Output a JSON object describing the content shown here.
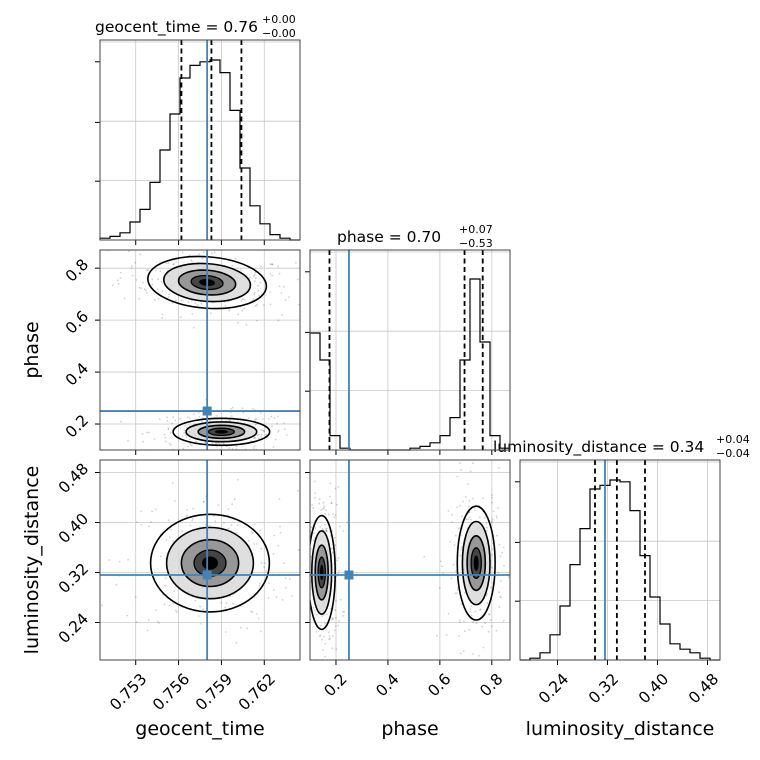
{
  "chart_data": {
    "type": "corner",
    "parameters": [
      "geocent_time",
      "phase",
      "luminosity_distance"
    ],
    "truths": {
      "geocent_time": 0.758,
      "phase": 0.25,
      "luminosity_distance": 0.316
    },
    "titles": [
      {
        "label": "geocent_time = 0.76",
        "plus": "+0.00",
        "minus": "−0.00"
      },
      {
        "label": "phase = 0.70",
        "plus": "+0.07",
        "minus": "−0.53"
      },
      {
        "label": "luminosity_distance = 0.34",
        "plus": "+0.04",
        "minus": "−0.04"
      }
    ],
    "axes": {
      "geocent_time": {
        "xlabel": "geocent_time",
        "lim": [
          0.7505,
          0.7645
        ],
        "ticks": [
          0.753,
          0.756,
          0.759,
          0.762
        ],
        "tick_labels": [
          "0.753",
          "0.756",
          "0.759",
          "0.762"
        ]
      },
      "phase": {
        "xlabel": "phase",
        "ylabel": "phase",
        "lim": [
          0.1,
          0.87
        ],
        "ticks": [
          0.2,
          0.4,
          0.6,
          0.8
        ],
        "tick_labels": [
          "0.2",
          "0.4",
          "0.6",
          "0.8"
        ]
      },
      "luminosity_distance": {
        "xlabel": "luminosity_distance",
        "ylabel": "luminosity_distance",
        "lim": [
          0.18,
          0.5
        ],
        "ticks": [
          0.24,
          0.32,
          0.4,
          0.48
        ],
        "tick_labels": [
          "0.24",
          "0.32",
          "0.40",
          "0.48"
        ]
      }
    },
    "hist_geocent_time": {
      "bin_edges": [
        0.7505,
        0.7512,
        0.7519,
        0.7526,
        0.7533,
        0.754,
        0.7547,
        0.7554,
        0.7561,
        0.7568,
        0.7575,
        0.7582,
        0.7589,
        0.7596,
        0.7603,
        0.761,
        0.7617,
        0.7624,
        0.7631,
        0.7638,
        0.7645
      ],
      "counts": [
        0.01,
        0.02,
        0.04,
        0.1,
        0.17,
        0.32,
        0.5,
        0.7,
        0.9,
        0.97,
        0.99,
        1.0,
        0.93,
        0.72,
        0.4,
        0.19,
        0.09,
        0.03,
        0.01,
        0.0
      ],
      "quantiles": [
        0.7562,
        0.7583,
        0.7604
      ]
    },
    "hist_phase": {
      "bin_edges": [
        0.1,
        0.1385,
        0.177,
        0.2155,
        0.254,
        0.2925,
        0.331,
        0.3695,
        0.408,
        0.4465,
        0.485,
        0.5235,
        0.562,
        0.6005,
        0.639,
        0.6775,
        0.716,
        0.7545,
        0.793,
        0.8315,
        0.87
      ],
      "counts": [
        0.65,
        0.5,
        0.08,
        0.01,
        0.0,
        0.0,
        0.0,
        0.0,
        0.0,
        0.0,
        0.01,
        0.02,
        0.04,
        0.08,
        0.18,
        0.5,
        0.95,
        0.6,
        0.08,
        0.01
      ],
      "quantiles": [
        0.175,
        0.695,
        0.765
      ]
    },
    "hist_luminosity_distance": {
      "bin_edges": [
        0.18,
        0.196,
        0.212,
        0.228,
        0.244,
        0.26,
        0.276,
        0.292,
        0.308,
        0.324,
        0.34,
        0.356,
        0.372,
        0.388,
        0.404,
        0.42,
        0.436,
        0.452,
        0.468,
        0.484,
        0.5
      ],
      "counts": [
        0.0,
        0.01,
        0.04,
        0.14,
        0.3,
        0.53,
        0.73,
        0.95,
        0.97,
        1.0,
        0.99,
        0.83,
        0.58,
        0.35,
        0.2,
        0.09,
        0.06,
        0.04,
        0.01,
        0.0
      ],
      "quantiles": [
        0.3,
        0.335,
        0.38
      ]
    },
    "posterior_modes": {
      "geocent_time_phase": [
        {
          "x": 0.758,
          "y": 0.745,
          "sx": 0.0016,
          "sy": 0.038,
          "rho": -0.3
        },
        {
          "x": 0.759,
          "y": 0.17,
          "sx": 0.0013,
          "sy": 0.02,
          "rho": 0.0
        }
      ],
      "geocent_time_luminosity_distance": [
        {
          "x": 0.7582,
          "y": 0.335,
          "sx": 0.0016,
          "sy": 0.03,
          "rho": 0.0
        }
      ],
      "phase_luminosity_distance": [
        {
          "x": 0.145,
          "y": 0.32,
          "sx": 0.02,
          "sy": 0.035,
          "rho": 0.0
        },
        {
          "x": 0.74,
          "y": 0.335,
          "sx": 0.028,
          "sy": 0.035,
          "rho": 0.0
        }
      ]
    },
    "grid": true
  }
}
